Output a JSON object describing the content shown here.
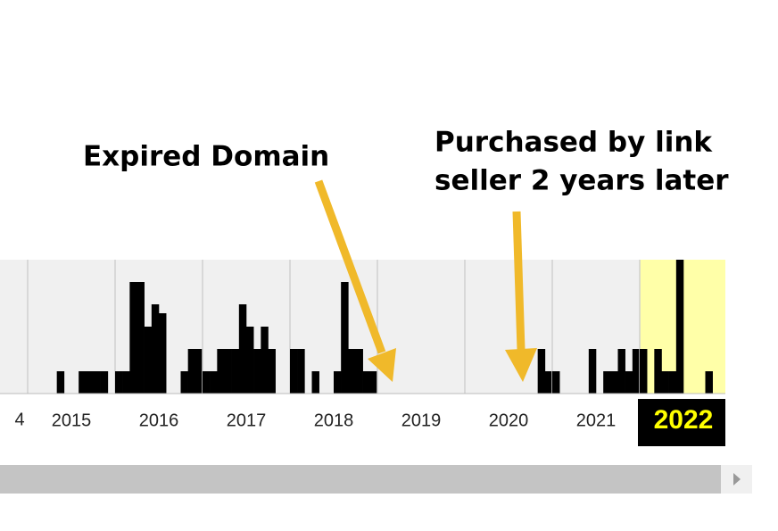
{
  "annotations": {
    "expired": "Expired Domain",
    "purchased": [
      "Purchased by link",
      "seller 2 years later"
    ]
  },
  "timeline": {
    "edge_label": "4",
    "selected": 7,
    "years": [
      {
        "label": "2015",
        "captures": [
          0,
          0,
          0,
          0,
          5,
          0,
          0,
          5,
          5,
          5,
          5,
          0
        ]
      },
      {
        "label": "2016",
        "captures": [
          5,
          5,
          25,
          25,
          15,
          20,
          18,
          0,
          0,
          5,
          10,
          10
        ]
      },
      {
        "label": "2017",
        "captures": [
          5,
          5,
          10,
          10,
          10,
          20,
          15,
          10,
          15,
          10,
          0,
          0
        ]
      },
      {
        "label": "2018",
        "captures": [
          10,
          10,
          0,
          5,
          0,
          0,
          5,
          25,
          10,
          10,
          5,
          5
        ]
      },
      {
        "label": "2019",
        "captures": [
          0,
          0,
          0,
          0,
          0,
          0,
          0,
          0,
          0,
          0,
          0,
          0
        ]
      },
      {
        "label": "2020",
        "captures": [
          0,
          0,
          0,
          0,
          0,
          0,
          0,
          0,
          0,
          0,
          10,
          5
        ]
      },
      {
        "label": "2021",
        "captures": [
          5,
          0,
          0,
          0,
          0,
          10,
          0,
          5,
          5,
          10,
          5,
          10
        ]
      },
      {
        "label": "2022",
        "captures": [
          10,
          0,
          10,
          5,
          5,
          30,
          0,
          0,
          0,
          5,
          0,
          0
        ]
      }
    ]
  }
}
